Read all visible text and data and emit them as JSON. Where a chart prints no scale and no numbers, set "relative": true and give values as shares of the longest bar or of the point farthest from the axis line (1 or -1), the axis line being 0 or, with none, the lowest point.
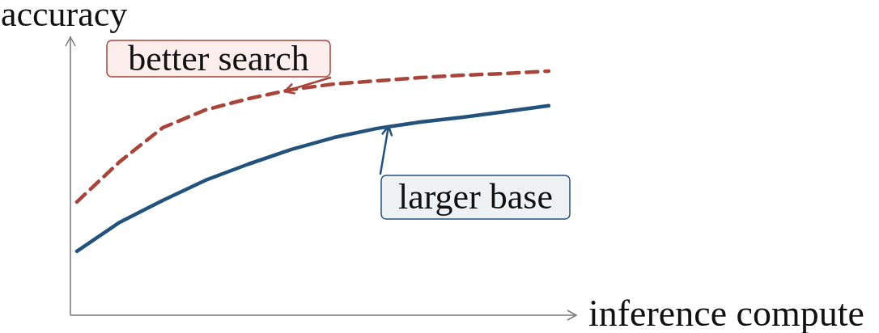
{
  "chart_data": {
    "type": "line",
    "relative": true,
    "xlabel": "inference compute",
    "ylabel": "accuracy",
    "categories": [
      null,
      null,
      null,
      null,
      null,
      null,
      null,
      null,
      null,
      null,
      null,
      null
    ],
    "series": [
      {
        "color": "#a9443a",
        "line_style": "dashed",
        "values": [
          0.464,
          0.629,
          0.768,
          0.841,
          0.887,
          0.924,
          0.947,
          0.96,
          0.973,
          0.983,
          0.99,
          1
        ]
      },
      {
        "color": "#23527c",
        "line_style": "solid",
        "values": [
          0.262,
          0.381,
          0.47,
          0.553,
          0.619,
          0.679,
          0.728,
          0.765,
          0.791,
          0.811,
          0.834,
          0.858
        ]
      }
    ],
    "annotations": [
      "better search",
      "larger base"
    ],
    "marker": "none",
    "grid": false,
    "legend": false,
    "tick_labels": false
  }
}
